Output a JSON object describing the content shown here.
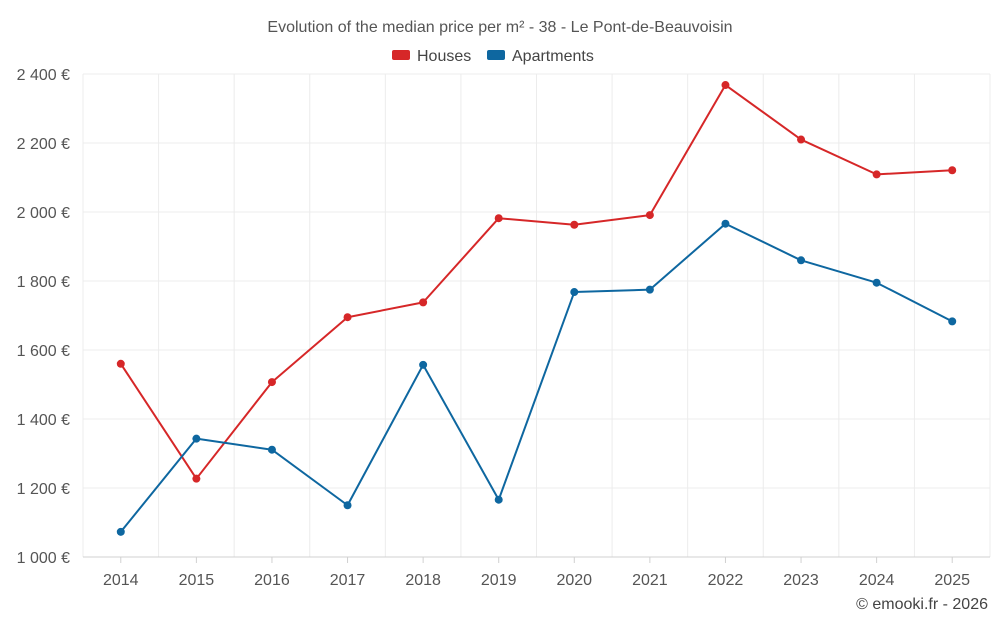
{
  "chart_data": {
    "type": "line",
    "title": "Evolution of the median price per m² - 38 - Le Pont-de-Beauvoisin",
    "categories": [
      "2014",
      "2015",
      "2016",
      "2017",
      "2018",
      "2019",
      "2020",
      "2021",
      "2022",
      "2023",
      "2024",
      "2025"
    ],
    "series": [
      {
        "name": "Houses",
        "color": "#d62728",
        "values": [
          1560,
          1227,
          1507,
          1695,
          1738,
          1982,
          1963,
          1991,
          2368,
          2210,
          2109,
          2121
        ]
      },
      {
        "name": "Apartments",
        "color": "#0e67a0",
        "values": [
          1073,
          1343,
          1311,
          1150,
          1557,
          1166,
          1768,
          1775,
          1966,
          1860,
          1795,
          1683
        ]
      }
    ],
    "ylim": [
      1000,
      2400
    ],
    "yticks": [
      1000,
      1200,
      1400,
      1600,
      1800,
      2000,
      2200,
      2400
    ],
    "ytick_labels": [
      "1 000 €",
      "1 200 €",
      "1 400 €",
      "1 600 €",
      "1 800 €",
      "2 000 €",
      "2 200 €",
      "2 400 €"
    ],
    "legend_position": "top-center",
    "grid": true
  },
  "credit": "© emooki.fr - 2026"
}
